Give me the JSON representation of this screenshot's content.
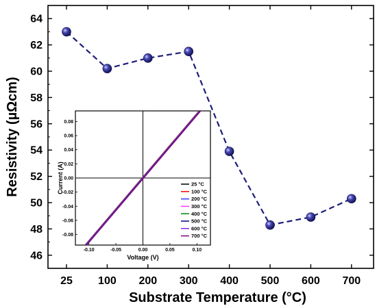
{
  "chart_data": [
    {
      "type": "line",
      "xlabel": "Substrate Temperature (°C)",
      "ylabel": "Resistivity (µΩcm)",
      "categories": [
        "25",
        "100",
        "200",
        "300",
        "400",
        "500",
        "600",
        "700"
      ],
      "series": [
        {
          "values": [
            63.0,
            60.2,
            61.0,
            61.5,
            53.9,
            48.3,
            48.9,
            50.3
          ],
          "color": "#1c1c7a",
          "style": "dashed",
          "marker": "sphere"
        }
      ],
      "ylim": [
        45,
        65
      ],
      "yticks": [
        46,
        48,
        50,
        52,
        54,
        56,
        58,
        60,
        62,
        64
      ],
      "grid": false
    },
    {
      "type": "line",
      "role": "inset",
      "xlabel": "Voltage (V)",
      "ylabel": "Current (A)",
      "xlim": [
        -0.125,
        0.125
      ],
      "ylim": [
        -0.095,
        0.095
      ],
      "xticks": [
        -0.1,
        -0.05,
        0.0,
        0.05,
        0.1
      ],
      "yticks": [
        -0.08,
        -0.06,
        -0.04,
        -0.02,
        0.0,
        0.02,
        0.04,
        0.06,
        0.08
      ],
      "legend_position": "bottom-right",
      "series": [
        {
          "name": "25 °C",
          "color": "#000000",
          "x": [
            -0.105,
            0.105
          ],
          "y": [
            -0.0945,
            0.0945
          ]
        },
        {
          "name": "100 °C",
          "color": "#ff0000",
          "x": [
            -0.105,
            0.105
          ],
          "y": [
            -0.0945,
            0.0945
          ]
        },
        {
          "name": "200 °C",
          "color": "#3333ff",
          "x": [
            -0.105,
            0.105
          ],
          "y": [
            -0.0945,
            0.0945
          ]
        },
        {
          "name": "300 °C",
          "color": "#ff33ff",
          "x": [
            -0.105,
            0.105
          ],
          "y": [
            -0.0945,
            0.0945
          ]
        },
        {
          "name": "400 °C",
          "color": "#008000",
          "x": [
            -0.105,
            0.105
          ],
          "y": [
            -0.0945,
            0.0945
          ]
        },
        {
          "name": "500 °C",
          "color": "#000080",
          "x": [
            -0.105,
            0.105
          ],
          "y": [
            -0.0945,
            0.0945
          ]
        },
        {
          "name": "600 °C",
          "color": "#8a2be2",
          "x": [
            -0.105,
            0.105
          ],
          "y": [
            -0.0945,
            0.0945
          ]
        },
        {
          "name": "700 °C",
          "color": "#800080",
          "x": [
            -0.105,
            0.105
          ],
          "y": [
            -0.0945,
            0.0945
          ]
        }
      ]
    }
  ]
}
